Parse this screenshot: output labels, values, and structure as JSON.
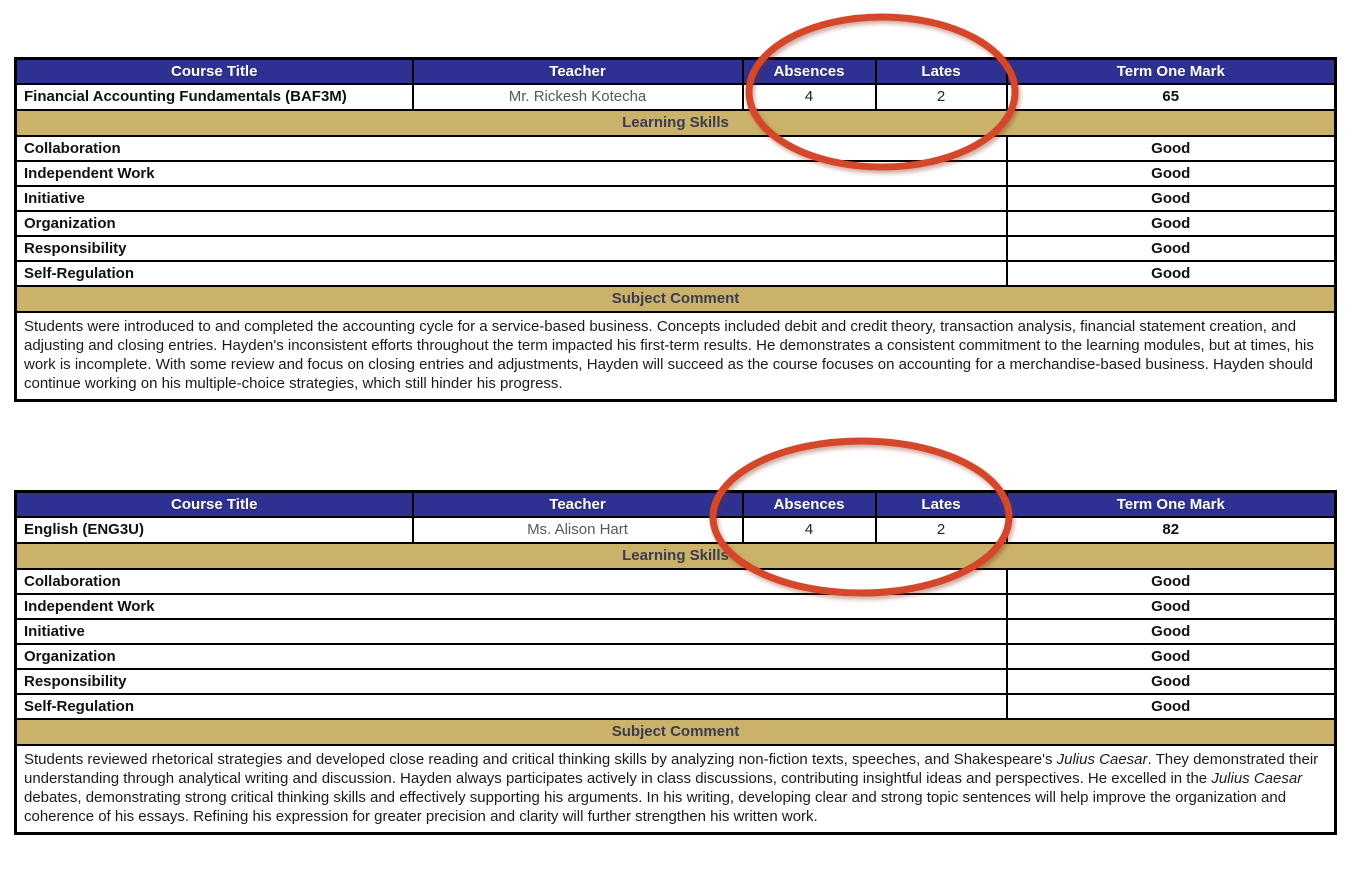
{
  "table_headers": [
    "Course Title",
    "Teacher",
    "Absences",
    "Lates",
    "Term One Mark"
  ],
  "section_labels": {
    "learning_skills": "Learning Skills",
    "subject_comment": "Subject Comment"
  },
  "skills": [
    "Collaboration",
    "Independent Work",
    "Initiative",
    "Organization",
    "Responsibility",
    "Self-Regulation"
  ],
  "courses": [
    {
      "title": "Financial Accounting Fundamentals (BAF3M)",
      "teacher": "Mr. Rickesh Kotecha",
      "absences": "4",
      "lates": "2",
      "term_one_mark": "65",
      "skill_ratings": [
        "Good",
        "Good",
        "Good",
        "Good",
        "Good",
        "Good"
      ],
      "comment_segments": [
        {
          "text": "Students were introduced to and completed the accounting cycle for a service-based business. Concepts included debit and credit theory, transaction analysis, financial statement creation, and adjusting and closing entries. Hayden's inconsistent efforts throughout the term impacted his first-term results. He demonstrates a consistent commitment to the learning modules, but at times, his work is incomplete. With some review and focus on closing entries and adjustments, Hayden will succeed as the course focuses on accounting for a merchandise-based business. Hayden should continue working on his multiple-choice strategies, which still hinder his progress.",
          "italic": false
        }
      ]
    },
    {
      "title": "English (ENG3U)",
      "teacher": "Ms. Alison Hart",
      "absences": "4",
      "lates": "2",
      "term_one_mark": "82",
      "skill_ratings": [
        "Good",
        "Good",
        "Good",
        "Good",
        "Good",
        "Good"
      ],
      "comment_segments": [
        {
          "text": "Students reviewed rhetorical strategies and developed close reading and critical thinking skills by analyzing non-fiction texts, speeches, and Shakespeare's ",
          "italic": false
        },
        {
          "text": "Julius Caesar",
          "italic": true
        },
        {
          "text": ". They demonstrated their understanding through analytical writing and discussion. Hayden always participates actively in class discussions, contributing insightful ideas and perspectives. He excelled in the ",
          "italic": false
        },
        {
          "text": "Julius Caesar",
          "italic": true
        },
        {
          "text": " debates, demonstrating strong critical thinking skills and effectively supporting his arguments. In his writing, developing clear and strong topic sentences will help improve the organization and coherence of his essays. Refining his expression for greater precision and clarity will further strengthen his written work.",
          "italic": false
        }
      ]
    }
  ],
  "colors": {
    "header_bg": "#2e3192",
    "header_text": "#ffffff",
    "band_bg": "#cbb26a",
    "band_text": "#3c3c4e",
    "teacher_text": "#595959",
    "annotation": "#d5472a"
  }
}
